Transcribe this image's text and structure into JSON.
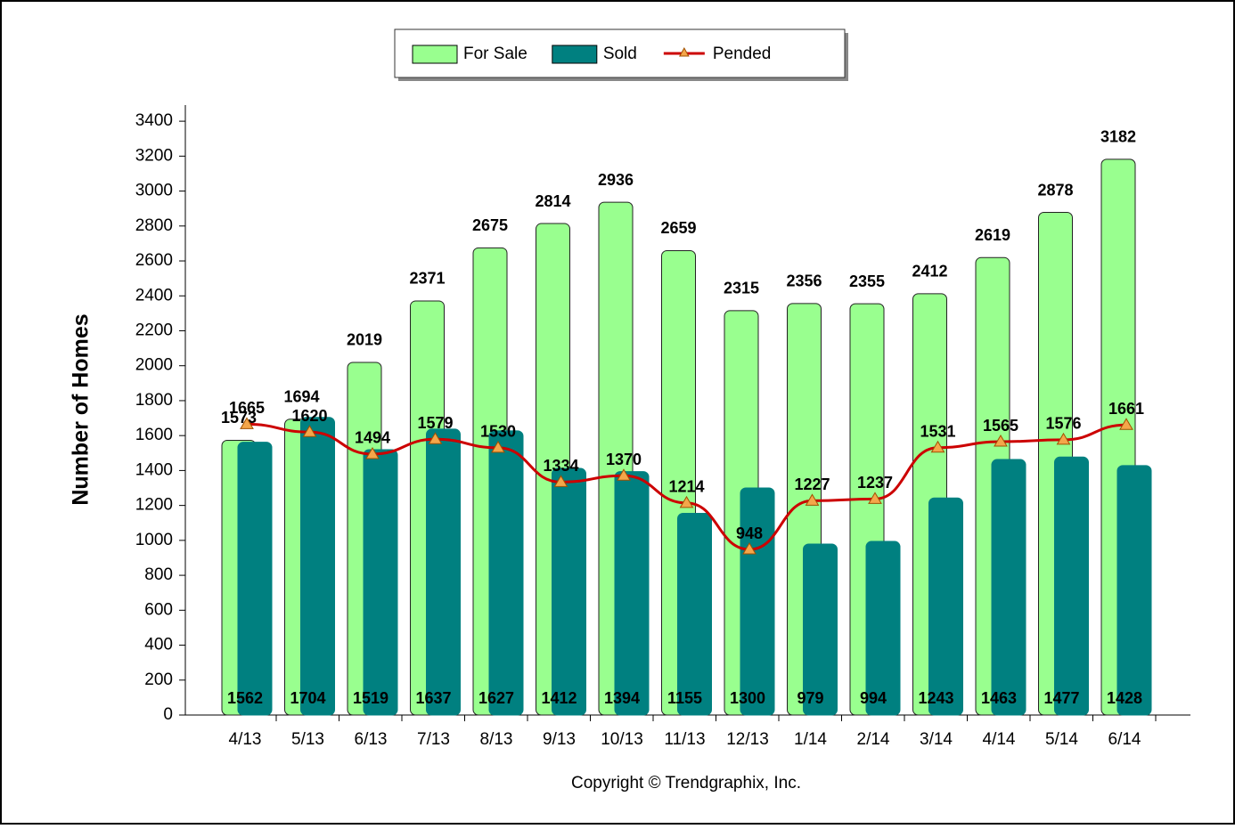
{
  "chart_data": {
    "type": "bar",
    "y_label": "Number of Homes",
    "footer": "Copyright © Trendgraphix, Inc.",
    "categories": [
      "4/13",
      "5/13",
      "6/13",
      "7/13",
      "8/13",
      "9/13",
      "10/13",
      "11/13",
      "12/13",
      "1/14",
      "2/14",
      "3/14",
      "4/14",
      "5/14",
      "6/14"
    ],
    "series": [
      {
        "name": "For Sale",
        "type": "bar",
        "color": "#99ff8f",
        "values": [
          1573,
          1694,
          2019,
          2371,
          2675,
          2814,
          2936,
          2659,
          2315,
          2356,
          2355,
          2412,
          2619,
          2878,
          3182
        ]
      },
      {
        "name": "Sold",
        "type": "bar",
        "color": "#008080",
        "values": [
          1562,
          1704,
          1519,
          1637,
          1627,
          1412,
          1394,
          1155,
          1300,
          979,
          994,
          1243,
          1463,
          1477,
          1428
        ]
      },
      {
        "name": "Pended",
        "type": "line",
        "color": "#cc0000",
        "marker_color": "#f4a64a",
        "values": [
          1665,
          1620,
          1494,
          1579,
          1530,
          1334,
          1370,
          1214,
          948,
          1227,
          1237,
          1531,
          1565,
          1576,
          1661
        ]
      }
    ],
    "ylim": [
      0,
      3500
    ],
    "yticks": [
      0,
      200,
      400,
      600,
      800,
      1000,
      1200,
      1400,
      1600,
      1800,
      2000,
      2200,
      2400,
      2600,
      2800,
      3000,
      3200,
      3400
    ],
    "legend": "top"
  }
}
